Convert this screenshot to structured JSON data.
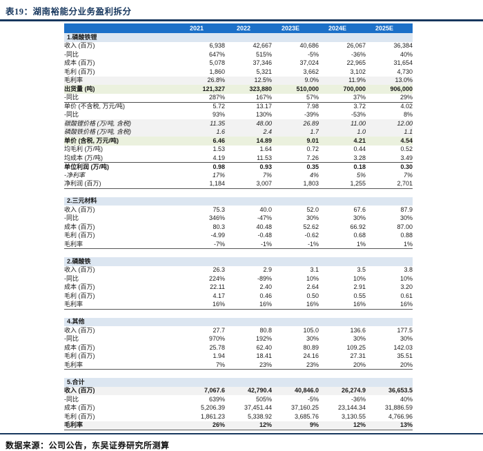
{
  "title": "表19：湖南裕能分业务盈利拆分",
  "footer": "数据来源：公司公告，东吴证券研究所测算",
  "colors": {
    "header_bg": "#1C70C8",
    "section_bg": "#DCE6F1",
    "row_gray": "#F2F2F2",
    "row_green": "#EBF1DE",
    "navy": "#17375E",
    "header_text": "#FFFFFF"
  },
  "columns": [
    "2021",
    "2022",
    "2023E",
    "2024E",
    "2025E"
  ],
  "sections": [
    {
      "label": "1.磷酸铁锂",
      "rows": [
        {
          "label": "收入 (百万)",
          "style": "",
          "values": [
            "6,938",
            "42,667",
            "40,686",
            "26,067",
            "36,384"
          ]
        },
        {
          "label": "-同比",
          "style": "",
          "values": [
            "647%",
            "515%",
            "-5%",
            "-36%",
            "40%"
          ]
        },
        {
          "label": "成本 (百万)",
          "style": "",
          "values": [
            "5,078",
            "37,346",
            "37,024",
            "22,965",
            "31,654"
          ]
        },
        {
          "label": "毛利 (百万)",
          "style": "",
          "values": [
            "1,860",
            "5,321",
            "3,662",
            "3,102",
            "4,730"
          ]
        },
        {
          "label": "毛利率",
          "style": "gray",
          "values": [
            "26.8%",
            "12.5%",
            "9.0%",
            "11.9%",
            "13.0%"
          ]
        },
        {
          "label": "出货量 (吨)",
          "style": "green",
          "values": [
            "121,327",
            "323,880",
            "510,000",
            "700,000",
            "906,000"
          ]
        },
        {
          "label": "-同比",
          "style": "",
          "values": [
            "287%",
            "167%",
            "57%",
            "37%",
            "29%"
          ]
        },
        {
          "label": "单价 (不含税, 万元/吨)",
          "style": "topline",
          "values": [
            "5.72",
            "13.17",
            "7.98",
            "3.72",
            "4.02"
          ]
        },
        {
          "label": "-同比",
          "style": "",
          "values": [
            "93%",
            "130%",
            "-39%",
            "-53%",
            "8%"
          ]
        },
        {
          "label": "碳酸锂价格 (万/吨, 含税)",
          "style": "italic gray",
          "values": [
            "11.35",
            "48.00",
            "26.89",
            "11.00",
            "12.00"
          ]
        },
        {
          "label": "磷酸铁价格 (万/吨, 含税)",
          "style": "italic gray",
          "values": [
            "1.6",
            "2.4",
            "1.7",
            "1.0",
            "1.1"
          ]
        },
        {
          "label": "单价 (含税, 万元/吨)",
          "style": "green",
          "values": [
            "6.46",
            "14.89",
            "9.01",
            "4.21",
            "4.54"
          ]
        },
        {
          "label": "均毛利 (万/吨)",
          "style": "",
          "values": [
            "1.53",
            "1.64",
            "0.72",
            "0.44",
            "0.52"
          ]
        },
        {
          "label": "均成本 (万/吨)",
          "style": "",
          "values": [
            "4.19",
            "11.53",
            "7.26",
            "3.28",
            "3.49"
          ]
        },
        {
          "label": "单位利润 (万/吨)",
          "style": "bold topline",
          "values": [
            "0.98",
            "0.93",
            "0.35",
            "0.18",
            "0.30"
          ]
        },
        {
          "label": "-净利率",
          "style": "italic",
          "values": [
            "17%",
            "7%",
            "4%",
            "5%",
            "7%"
          ]
        },
        {
          "label": "净利润 (百万)",
          "style": "endline",
          "values": [
            "1,184",
            "3,007",
            "1,803",
            "1,255",
            "2,701"
          ]
        }
      ]
    },
    {
      "label": "2.三元材料",
      "rows": [
        {
          "label": "收入 (百万)",
          "style": "",
          "values": [
            "75.3",
            "40.0",
            "52.0",
            "67.6",
            "87.9"
          ]
        },
        {
          "label": "-同比",
          "style": "",
          "values": [
            "346%",
            "-47%",
            "30%",
            "30%",
            "30%"
          ]
        },
        {
          "label": "成本 (百万)",
          "style": "",
          "values": [
            "80.3",
            "40.48",
            "52.62",
            "66.92",
            "87.00"
          ]
        },
        {
          "label": "毛利 (百万)",
          "style": "",
          "values": [
            "-4.99",
            "-0.48",
            "-0.62",
            "0.68",
            "0.88"
          ]
        },
        {
          "label": "毛利率",
          "style": "endline",
          "values": [
            "-7%",
            "-1%",
            "-1%",
            "1%",
            "1%"
          ]
        }
      ]
    },
    {
      "label": "2.磷酸铁",
      "rows": [
        {
          "label": "收入 (百万)",
          "style": "",
          "values": [
            "26.3",
            "2.9",
            "3.1",
            "3.5",
            "3.8"
          ]
        },
        {
          "label": "-同比",
          "style": "",
          "values": [
            "224%",
            "-89%",
            "10%",
            "10%",
            "10%"
          ]
        },
        {
          "label": "成本 (百万)",
          "style": "",
          "values": [
            "22.11",
            "2.40",
            "2.64",
            "2.91",
            "3.20"
          ]
        },
        {
          "label": "毛利 (百万)",
          "style": "",
          "values": [
            "4.17",
            "0.46",
            "0.50",
            "0.55",
            "0.61"
          ]
        },
        {
          "label": "毛利率",
          "style": "endline",
          "values": [
            "16%",
            "16%",
            "16%",
            "16%",
            "16%"
          ]
        }
      ]
    },
    {
      "label": "4.其他",
      "rows": [
        {
          "label": "收入 (百万)",
          "style": "",
          "values": [
            "27.7",
            "80.8",
            "105.0",
            "136.6",
            "177.5"
          ]
        },
        {
          "label": "-同比",
          "style": "",
          "values": [
            "970%",
            "192%",
            "30%",
            "30%",
            "30%"
          ]
        },
        {
          "label": "成本 (百万)",
          "style": "",
          "values": [
            "25.78",
            "62.40",
            "80.89",
            "109.25",
            "142.03"
          ]
        },
        {
          "label": "毛利 (百万)",
          "style": "",
          "values": [
            "1.94",
            "18.41",
            "24.16",
            "27.31",
            "35.51"
          ]
        },
        {
          "label": "毛利率",
          "style": "endline",
          "values": [
            "7%",
            "23%",
            "23%",
            "20%",
            "20%"
          ]
        }
      ]
    },
    {
      "label": "5.合计",
      "rows": [
        {
          "label": "收入 (百万)",
          "style": "bold gray",
          "values": [
            "7,067.6",
            "42,790.4",
            "40,846.0",
            "26,274.9",
            "36,653.5"
          ]
        },
        {
          "label": "-同比",
          "style": "",
          "values": [
            "639%",
            "505%",
            "-5%",
            "-36%",
            "40%"
          ]
        },
        {
          "label": "成本 (百万)",
          "style": "",
          "values": [
            "5,206.39",
            "37,451.44",
            "37,160.25",
            "23,144.34",
            "31,886.59"
          ]
        },
        {
          "label": "毛利 (百万)",
          "style": "",
          "values": [
            "1,861.23",
            "5,338.92",
            "3,685.76",
            "3,130.55",
            "4,766.96"
          ]
        },
        {
          "label": "毛利率",
          "style": "bold gray endline",
          "values": [
            "26%",
            "12%",
            "9%",
            "12%",
            "13%"
          ]
        }
      ]
    }
  ]
}
